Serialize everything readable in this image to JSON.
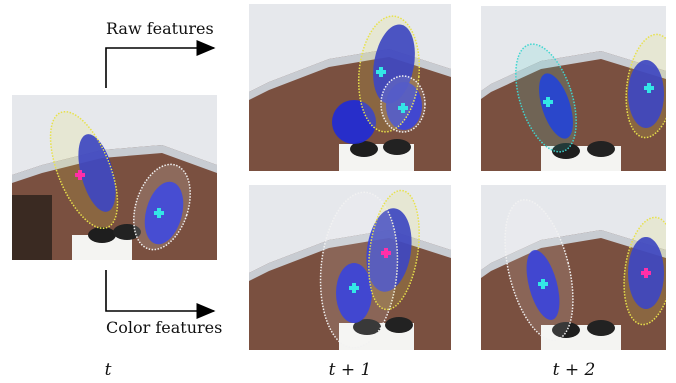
{
  "labels": {
    "raw": "Raw features",
    "color": "Color features"
  },
  "times": {
    "t": "t",
    "t1": "t + 1",
    "t2": "t + 2"
  },
  "colors": {
    "ellipse_yellow": "#e8e24a",
    "ellipse_white": "#f2f2f2",
    "ellipse_cyan": "#3fd6d0",
    "marker_magenta": "#ff2fa8",
    "marker_cyan": "#33e6e6",
    "person_blue": "#1f2bd6"
  }
}
